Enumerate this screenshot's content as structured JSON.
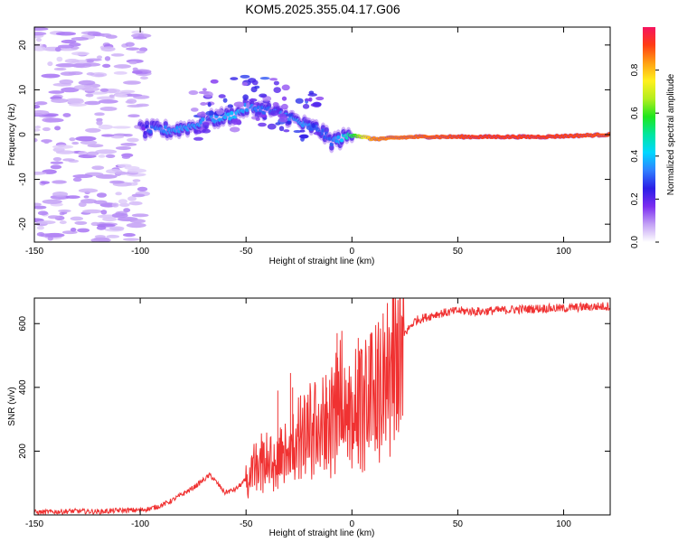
{
  "title": "KOM5.2025.355.04.17.G06",
  "chart_data": [
    {
      "type": "heatmap",
      "xlabel": "Height of straight line (km)",
      "ylabel": "Frequency (Hz)",
      "xlim": [
        -150,
        122
      ],
      "ylim": [
        -24,
        24
      ],
      "xticks": [
        -150,
        -100,
        -50,
        0,
        50,
        100
      ],
      "yticks": [
        -20,
        -10,
        0,
        10,
        20
      ],
      "colorbar": {
        "label": "Normalized spectral amplitude",
        "ticks": [
          "0.0",
          "0.2",
          "0.4",
          "0.6",
          "0.8"
        ],
        "range": [
          0,
          1
        ],
        "colormap": [
          "#ffffff",
          "#c3a0f5",
          "#7b2cf0",
          "#2b1ee6",
          "#3080ff",
          "#00d8ff",
          "#00e6a0",
          "#1ee61e",
          "#b4ee1e",
          "#fff01e",
          "#ffa014",
          "#ff3c14",
          "#f5145f"
        ]
      },
      "ridge": [
        {
          "x": -150,
          "y": 0.0,
          "amp": 0.05
        },
        {
          "x": -100,
          "y": 1.0,
          "amp": 0.08
        },
        {
          "x": -96,
          "y": 1.0,
          "amp": 0.3
        },
        {
          "x": -85,
          "y": 1.0,
          "amp": 0.35
        },
        {
          "x": -75,
          "y": 2.0,
          "amp": 0.35
        },
        {
          "x": -65,
          "y": 3.5,
          "amp": 0.35
        },
        {
          "x": -55,
          "y": 4.5,
          "amp": 0.4
        },
        {
          "x": -50,
          "y": 6.0,
          "amp": 0.35
        },
        {
          "x": -40,
          "y": 5.5,
          "amp": 0.3
        },
        {
          "x": -30,
          "y": 4.0,
          "amp": 0.35
        },
        {
          "x": -22,
          "y": 2.0,
          "amp": 0.35
        },
        {
          "x": -15,
          "y": 1.0,
          "amp": 0.3
        },
        {
          "x": -10,
          "y": -1.5,
          "amp": 0.3
        },
        {
          "x": -5,
          "y": -1.0,
          "amp": 0.4
        },
        {
          "x": 0,
          "y": 0.0,
          "amp": 0.55
        },
        {
          "x": 10,
          "y": -1.0,
          "amp": 0.85
        },
        {
          "x": 30,
          "y": -0.5,
          "amp": 0.88
        },
        {
          "x": 60,
          "y": -0.5,
          "amp": 0.92
        },
        {
          "x": 90,
          "y": -0.5,
          "amp": 0.92
        },
        {
          "x": 122,
          "y": 0.0,
          "amp": 0.9
        }
      ]
    },
    {
      "type": "line",
      "xlabel": "Height of straight line (km)",
      "ylabel": "SNR (v/v)",
      "xlim": [
        -150,
        122
      ],
      "ylim": [
        0,
        680
      ],
      "xticks": [
        -150,
        -100,
        -50,
        0,
        50,
        100
      ],
      "yticks": [
        200,
        400,
        600
      ],
      "line_color": "#f03232",
      "series": [
        {
          "x": [
            -150,
            -140,
            -130,
            -120,
            -110,
            -100,
            -95,
            -90,
            -85,
            -80,
            -75,
            -70,
            -67,
            -65,
            -60,
            -55,
            -50,
            -45,
            -40,
            -35,
            -30,
            -25,
            -20,
            -15,
            -10,
            -7,
            -5,
            -3,
            0,
            5,
            10,
            15,
            20,
            25,
            30,
            40,
            50,
            60,
            70,
            80,
            90,
            100,
            110,
            122
          ],
          "y": [
            8,
            10,
            12,
            10,
            14,
            15,
            20,
            30,
            45,
            65,
            85,
            110,
            125,
            110,
            70,
            80,
            110,
            170,
            190,
            200,
            210,
            260,
            290,
            300,
            320,
            380,
            400,
            400,
            360,
            380,
            410,
            440,
            520,
            570,
            610,
            630,
            640,
            638,
            642,
            645,
            648,
            648,
            652,
            655
          ]
        }
      ],
      "spikes": [
        {
          "x": -35,
          "y": 390
        },
        {
          "x": -29,
          "y": 445
        },
        {
          "x": -28,
          "y": 400
        },
        {
          "x": -12,
          "y": 400
        },
        {
          "x": -7,
          "y": 570
        },
        {
          "x": 3,
          "y": 555
        },
        {
          "x": 8,
          "y": 530
        },
        {
          "x": 12,
          "y": 520
        }
      ]
    }
  ]
}
